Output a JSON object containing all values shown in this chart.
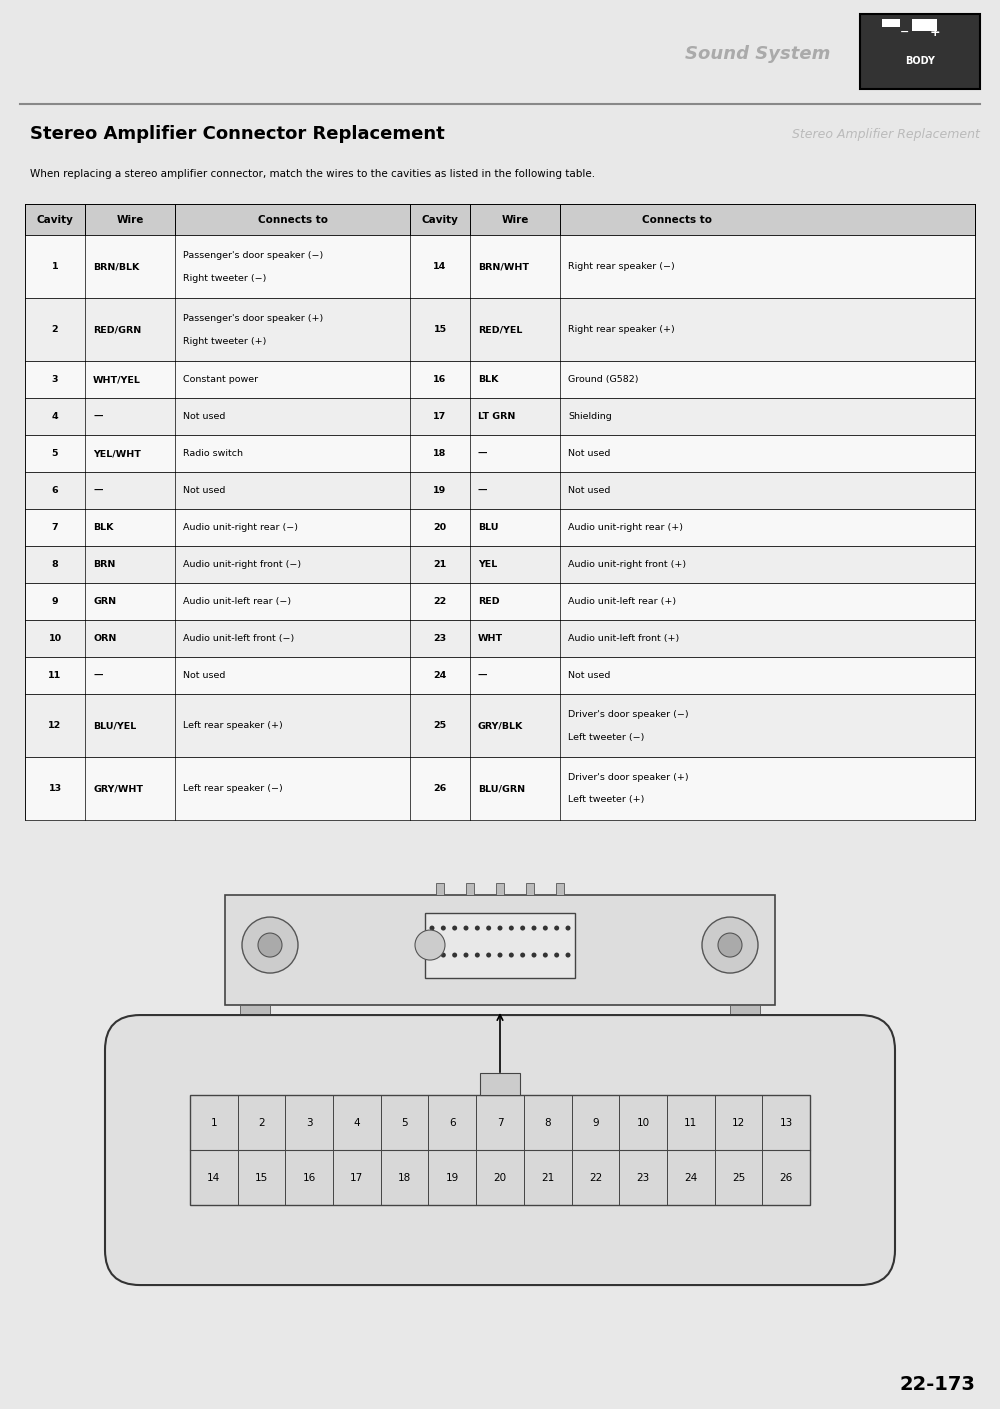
{
  "title": "Stereo Amplifier Connector Replacement",
  "subtitle_mirror": "Stereo Amplifier Replacement",
  "intro_text": "When replacing a stereo amplifier connector, match the wires to the cavities as listed in the following table.",
  "page_number": "22-173",
  "header_bg": "#d0d0d0",
  "body_bg": "#f5f5f5",
  "table_headers": [
    "Cavity",
    "Wire",
    "Connects to",
    "Cavity",
    "Wire",
    "Connects to"
  ],
  "table_rows": [
    [
      "1",
      "BRN/BLK",
      "Passenger's door speaker (−)\nRight tweeter (−)",
      "14",
      "BRN/WHT",
      "Right rear speaker (−)"
    ],
    [
      "2",
      "RED/GRN",
      "Passenger's door speaker (+)\nRight tweeter (+)",
      "15",
      "RED/YEL",
      "Right rear speaker (+)"
    ],
    [
      "3",
      "WHT/YEL",
      "Constant power",
      "16",
      "BLK",
      "Ground (G582)"
    ],
    [
      "4",
      "—",
      "Not used",
      "17",
      "LT GRN",
      "Shielding"
    ],
    [
      "5",
      "YEL/WHT",
      "Radio switch",
      "18",
      "—",
      "Not used"
    ],
    [
      "6",
      "—",
      "Not used",
      "19",
      "—",
      "Not used"
    ],
    [
      "7",
      "BLK",
      "Audio unit-right rear (−)",
      "20",
      "BLU",
      "Audio unit-right rear (+)"
    ],
    [
      "8",
      "BRN",
      "Audio unit-right front (−)",
      "21",
      "YEL",
      "Audio unit-right front (+)"
    ],
    [
      "9",
      "GRN",
      "Audio unit-left rear (−)",
      "22",
      "RED",
      "Audio unit-left rear (+)"
    ],
    [
      "10",
      "ORN",
      "Audio unit-left front (−)",
      "23",
      "WHT",
      "Audio unit-left front (+)"
    ],
    [
      "11",
      "—",
      "Not used",
      "24",
      "—",
      "Not used"
    ],
    [
      "12",
      "BLU/YEL",
      "Left rear speaker (+)",
      "25",
      "GRY/BLK",
      "Driver's door speaker (−)\nLeft tweeter (−)"
    ],
    [
      "13",
      "GRY/WHT",
      "Left rear speaker (−)",
      "26",
      "BLU/GRN",
      "Driver's door speaker (+)\nLeft tweeter (+)"
    ]
  ],
  "connector_top_row": [
    1,
    2,
    3,
    4,
    5,
    6,
    7,
    8,
    9,
    10,
    11,
    12,
    13
  ],
  "connector_bot_row": [
    14,
    15,
    16,
    17,
    18,
    19,
    20,
    21,
    22,
    23,
    24,
    25,
    26
  ],
  "bg_color": "#e8e8e8",
  "page_bg": "#f0f0f0"
}
